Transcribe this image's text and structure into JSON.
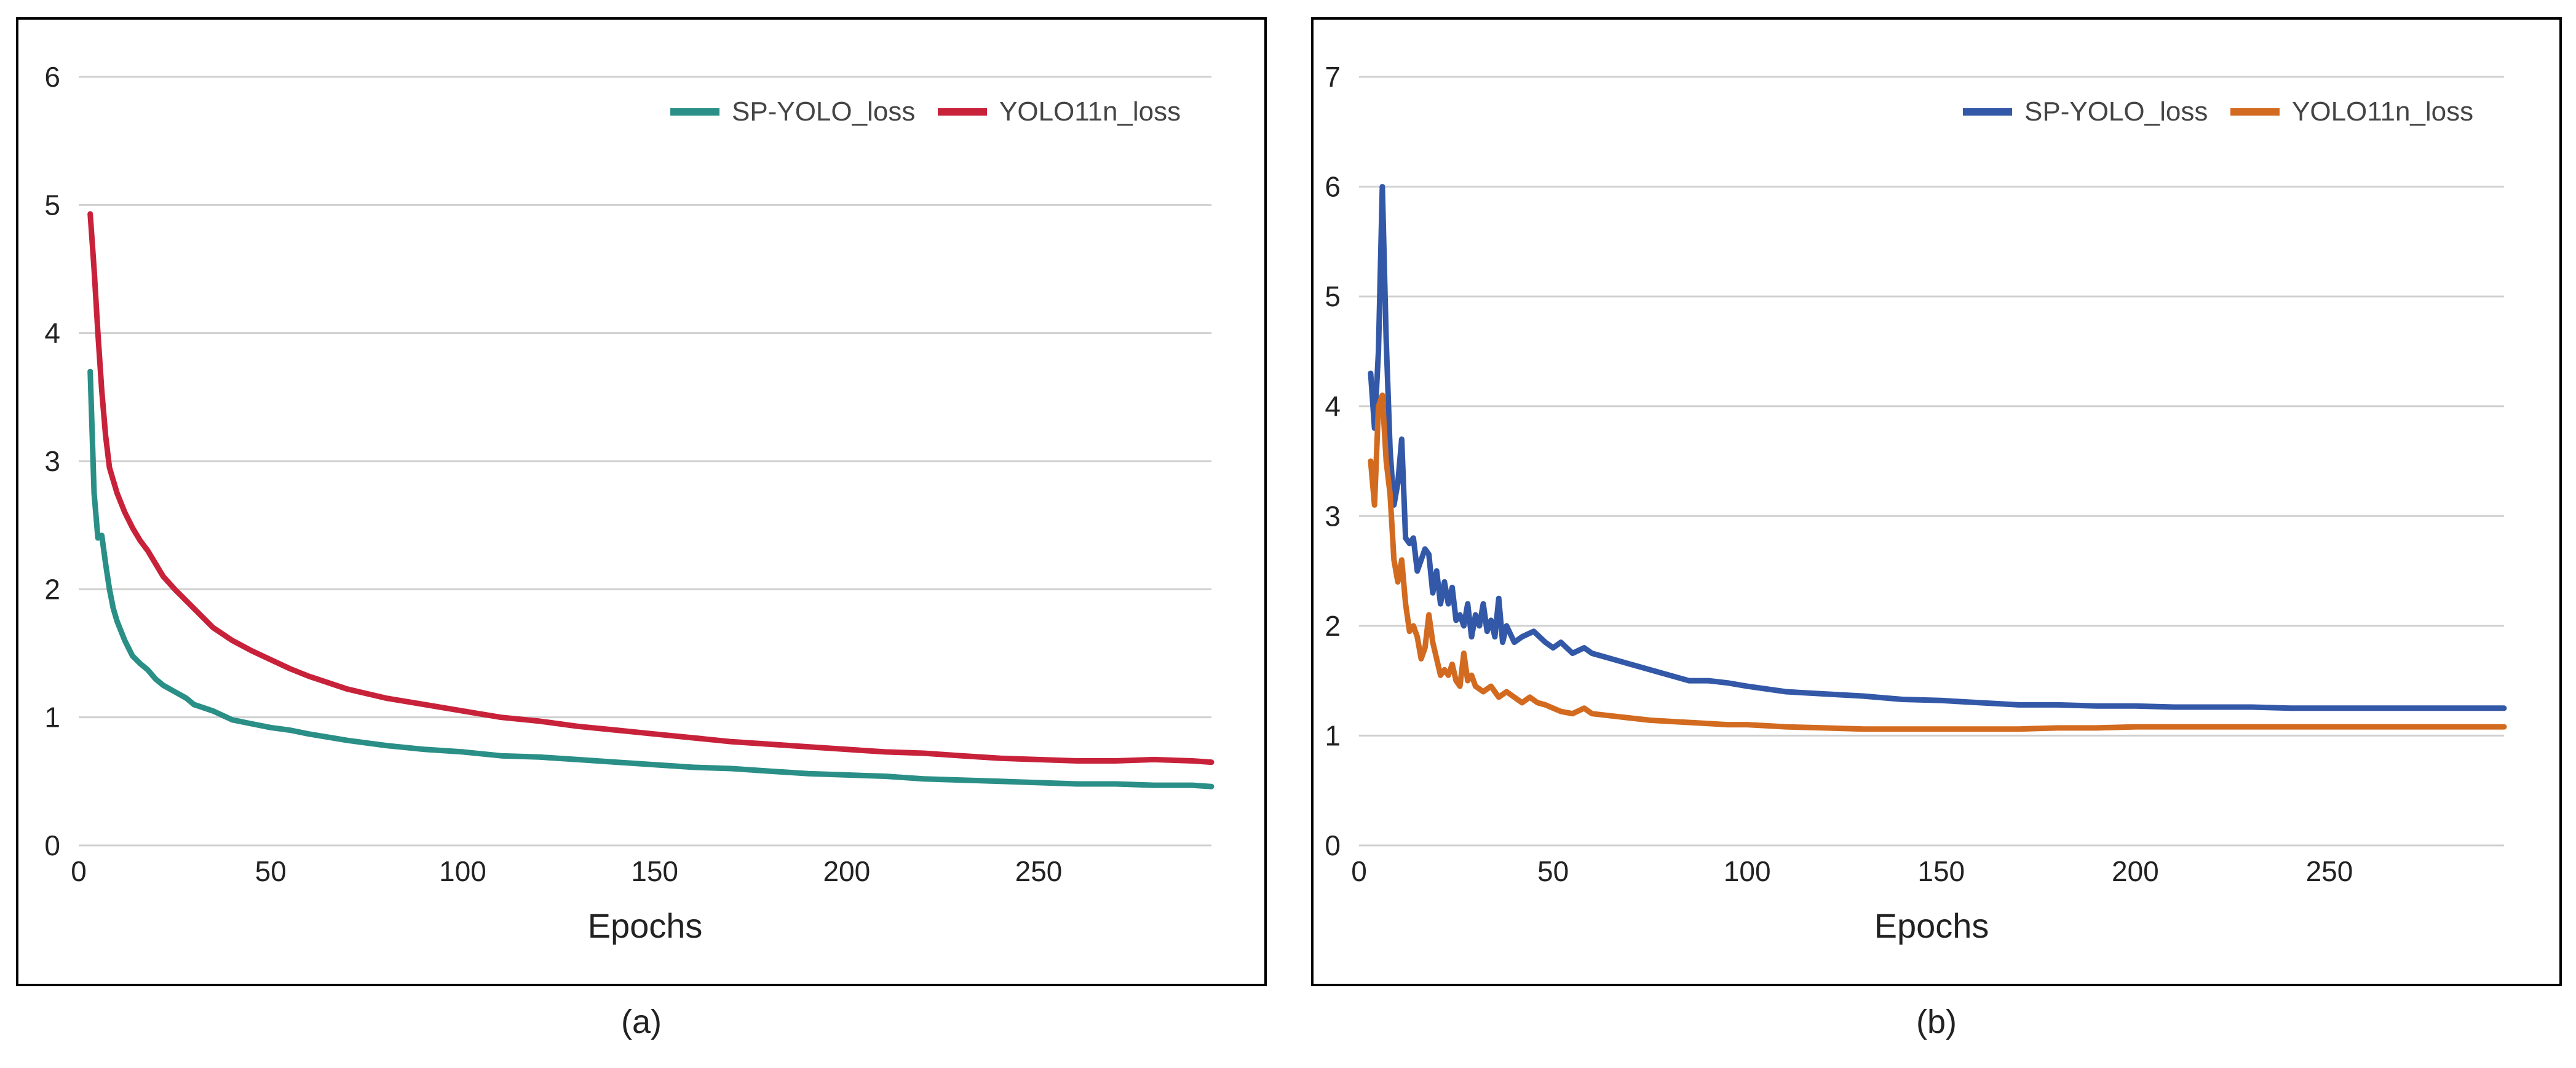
{
  "colors": {
    "background": "#ffffff",
    "frame": "#000000",
    "grid": "#d0d0d0",
    "text": "#222222"
  },
  "panels": [
    {
      "caption": "(a)"
    },
    {
      "caption": "(b)"
    }
  ],
  "chart_data": [
    {
      "type": "line",
      "title": "",
      "xlabel": "Epochs",
      "ylabel": "",
      "xlim": [
        0,
        295
      ],
      "ylim": [
        0,
        6
      ],
      "xticks": [
        0,
        50,
        100,
        150,
        200,
        250
      ],
      "yticks": [
        0,
        1,
        2,
        3,
        4,
        5,
        6
      ],
      "grid": "horizontal",
      "legend": "top-right",
      "series": [
        {
          "name": "SP-YOLO_loss",
          "color": "#2a8f86",
          "x": [
            3,
            4,
            5,
            6,
            7,
            8,
            9,
            10,
            12,
            14,
            16,
            18,
            20,
            22,
            25,
            28,
            30,
            35,
            40,
            45,
            50,
            55,
            60,
            70,
            80,
            90,
            100,
            110,
            120,
            130,
            140,
            150,
            160,
            170,
            180,
            190,
            200,
            210,
            220,
            230,
            240,
            250,
            260,
            270,
            280,
            290,
            295
          ],
          "y": [
            3.7,
            2.75,
            2.4,
            2.42,
            2.2,
            2.0,
            1.85,
            1.75,
            1.6,
            1.48,
            1.42,
            1.37,
            1.3,
            1.25,
            1.2,
            1.15,
            1.1,
            1.05,
            0.98,
            0.95,
            0.92,
            0.9,
            0.87,
            0.82,
            0.78,
            0.75,
            0.73,
            0.7,
            0.69,
            0.67,
            0.65,
            0.63,
            0.61,
            0.6,
            0.58,
            0.56,
            0.55,
            0.54,
            0.52,
            0.51,
            0.5,
            0.49,
            0.48,
            0.48,
            0.47,
            0.47,
            0.46
          ]
        },
        {
          "name": "YOLO11n_loss",
          "color": "#c8223a",
          "x": [
            3,
            4,
            5,
            6,
            7,
            8,
            9,
            10,
            12,
            14,
            16,
            18,
            20,
            22,
            25,
            30,
            35,
            40,
            45,
            50,
            55,
            60,
            70,
            80,
            90,
            100,
            110,
            120,
            130,
            140,
            150,
            160,
            170,
            180,
            190,
            200,
            210,
            220,
            230,
            240,
            250,
            260,
            270,
            280,
            290,
            295
          ],
          "y": [
            4.93,
            4.5,
            4.0,
            3.55,
            3.2,
            2.95,
            2.85,
            2.75,
            2.6,
            2.48,
            2.38,
            2.3,
            2.2,
            2.1,
            2.0,
            1.85,
            1.7,
            1.6,
            1.52,
            1.45,
            1.38,
            1.32,
            1.22,
            1.15,
            1.1,
            1.05,
            1.0,
            0.97,
            0.93,
            0.9,
            0.87,
            0.84,
            0.81,
            0.79,
            0.77,
            0.75,
            0.73,
            0.72,
            0.7,
            0.68,
            0.67,
            0.66,
            0.66,
            0.67,
            0.66,
            0.65
          ]
        }
      ]
    },
    {
      "type": "line",
      "title": "",
      "xlabel": "Epochs",
      "ylabel": "",
      "xlim": [
        0,
        295
      ],
      "ylim": [
        0,
        7
      ],
      "xticks": [
        0,
        50,
        100,
        150,
        200,
        250
      ],
      "yticks": [
        0,
        1,
        2,
        3,
        4,
        5,
        6,
        7
      ],
      "grid": "horizontal",
      "legend": "top-right",
      "series": [
        {
          "name": "SP-YOLO_loss",
          "color": "#3358a8",
          "x": [
            3,
            4,
            5,
            6,
            7,
            8,
            9,
            10,
            11,
            12,
            13,
            14,
            15,
            16,
            17,
            18,
            19,
            20,
            21,
            22,
            23,
            24,
            25,
            26,
            27,
            28,
            29,
            30,
            31,
            32,
            33,
            34,
            35,
            36,
            37,
            38,
            40,
            42,
            45,
            48,
            50,
            52,
            55,
            58,
            60,
            65,
            70,
            75,
            80,
            85,
            90,
            95,
            100,
            110,
            120,
            130,
            140,
            150,
            160,
            170,
            180,
            190,
            200,
            210,
            220,
            230,
            240,
            250,
            260,
            270,
            280,
            290,
            295
          ],
          "y": [
            4.3,
            3.8,
            4.5,
            6.0,
            4.6,
            3.6,
            3.1,
            3.3,
            3.7,
            2.8,
            2.75,
            2.8,
            2.5,
            2.6,
            2.7,
            2.65,
            2.3,
            2.5,
            2.2,
            2.4,
            2.2,
            2.35,
            2.05,
            2.1,
            2.0,
            2.2,
            1.9,
            2.1,
            2.0,
            2.2,
            1.95,
            2.05,
            1.9,
            2.25,
            1.85,
            2.0,
            1.85,
            1.9,
            1.95,
            1.85,
            1.8,
            1.85,
            1.75,
            1.8,
            1.75,
            1.7,
            1.65,
            1.6,
            1.55,
            1.5,
            1.5,
            1.48,
            1.45,
            1.4,
            1.38,
            1.36,
            1.33,
            1.32,
            1.3,
            1.28,
            1.28,
            1.27,
            1.27,
            1.26,
            1.26,
            1.26,
            1.25,
            1.25,
            1.25,
            1.25,
            1.25,
            1.25,
            1.25
          ]
        },
        {
          "name": "YOLO11n_loss",
          "color": "#d26a1f",
          "x": [
            3,
            4,
            5,
            6,
            7,
            8,
            9,
            10,
            11,
            12,
            13,
            14,
            15,
            16,
            17,
            18,
            19,
            20,
            21,
            22,
            23,
            24,
            25,
            26,
            27,
            28,
            29,
            30,
            32,
            34,
            36,
            38,
            40,
            42,
            44,
            46,
            48,
            50,
            52,
            55,
            58,
            60,
            65,
            70,
            75,
            80,
            85,
            90,
            95,
            100,
            110,
            120,
            130,
            140,
            150,
            160,
            170,
            180,
            190,
            200,
            210,
            220,
            230,
            240,
            250,
            260,
            270,
            280,
            290,
            295
          ],
          "y": [
            3.5,
            3.1,
            4.0,
            4.1,
            3.5,
            3.2,
            2.6,
            2.4,
            2.6,
            2.2,
            1.95,
            2.0,
            1.9,
            1.7,
            1.8,
            2.1,
            1.85,
            1.7,
            1.55,
            1.6,
            1.55,
            1.65,
            1.5,
            1.45,
            1.75,
            1.5,
            1.55,
            1.45,
            1.4,
            1.45,
            1.35,
            1.4,
            1.35,
            1.3,
            1.35,
            1.3,
            1.28,
            1.25,
            1.22,
            1.2,
            1.25,
            1.2,
            1.18,
            1.16,
            1.14,
            1.13,
            1.12,
            1.11,
            1.1,
            1.1,
            1.08,
            1.07,
            1.06,
            1.06,
            1.06,
            1.06,
            1.06,
            1.07,
            1.07,
            1.08,
            1.08,
            1.08,
            1.08,
            1.08,
            1.08,
            1.08,
            1.08,
            1.08,
            1.08,
            1.08
          ]
        }
      ]
    }
  ]
}
